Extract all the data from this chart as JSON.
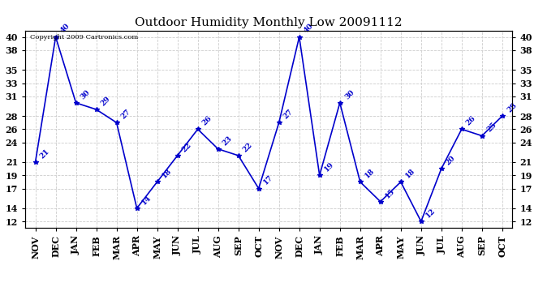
{
  "title": "Outdoor Humidity Monthly Low 20091112",
  "copyright": "Copyright 2009 Cartronics.com",
  "x_labels": [
    "NOV",
    "DEC",
    "JAN",
    "FEB",
    "MAR",
    "APR",
    "MAY",
    "JUN",
    "JUL",
    "AUG",
    "SEP",
    "OCT",
    "NOV",
    "DEC",
    "JAN",
    "FEB",
    "MAR",
    "APR",
    "MAY",
    "JUN",
    "JUL",
    "AUG",
    "SEP",
    "OCT"
  ],
  "y_values": [
    21,
    40,
    30,
    29,
    27,
    14,
    18,
    22,
    26,
    23,
    22,
    17,
    27,
    40,
    19,
    30,
    18,
    15,
    18,
    12,
    20,
    26,
    25,
    28
  ],
  "y_labels": [
    12,
    14,
    17,
    19,
    21,
    24,
    26,
    28,
    31,
    33,
    35,
    38,
    40
  ],
  "ylim_min": 11,
  "ylim_max": 41,
  "line_color": "#0000cc",
  "marker_color": "#0000cc",
  "grid_color": "#cccccc",
  "bg_color": "#ffffff",
  "title_fontsize": 11,
  "tick_fontsize": 8,
  "point_label_fontsize": 6.5
}
